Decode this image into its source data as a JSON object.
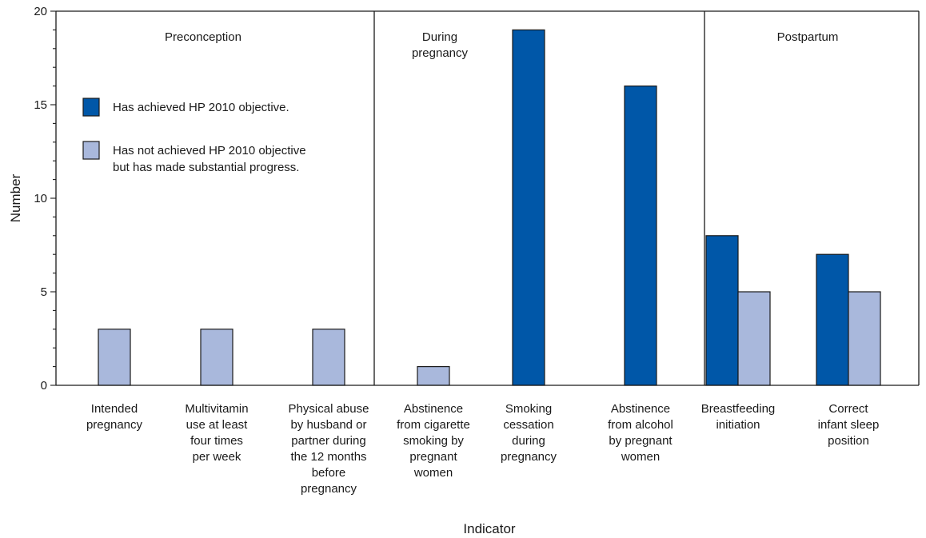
{
  "chart_data": {
    "type": "bar",
    "title": "",
    "xlabel": "Indicator",
    "ylabel": "Number",
    "ylim": [
      0,
      20
    ],
    "yticks": [
      "0",
      "5",
      "10",
      "15",
      "20"
    ],
    "grid": false,
    "legend_position": "upper-left",
    "categories": [
      [
        "Intended",
        "pregnancy"
      ],
      [
        "Multivitamin",
        "use at least",
        "four times",
        "per week"
      ],
      [
        "Physical abuse",
        "by husband or",
        "partner during",
        "the 12 months",
        "before",
        "pregnancy"
      ],
      [
        "Abstinence",
        "from cigarette",
        "smoking by",
        "pregnant",
        "women"
      ],
      [
        "Smoking",
        "cessation",
        "during",
        "pregnancy"
      ],
      [
        "Abstinence",
        "from alcohol",
        "by pregnant",
        "women"
      ],
      [
        "Breastfeeding",
        "initiation"
      ],
      [
        "Correct",
        "infant sleep",
        "position"
      ]
    ],
    "series": [
      {
        "name": [
          "Has achieved HP 2010 objective."
        ],
        "color": "#0057a8",
        "values": [
          0,
          0,
          0,
          0,
          19,
          16,
          8,
          7
        ]
      },
      {
        "name": [
          "Has not achieved HP 2010 objective",
          "but has made substantial progress."
        ],
        "color": "#a9b8dc",
        "values": [
          3,
          3,
          3,
          1,
          0,
          0,
          5,
          5
        ]
      }
    ],
    "panels": [
      {
        "label": [
          "Preconception"
        ],
        "categories": [
          0,
          1,
          2
        ]
      },
      {
        "label": [
          "During",
          "pregnancy"
        ],
        "categories": [
          3,
          4,
          5
        ]
      },
      {
        "label": [
          "Postpartum"
        ],
        "categories": [
          6,
          7
        ]
      }
    ]
  }
}
